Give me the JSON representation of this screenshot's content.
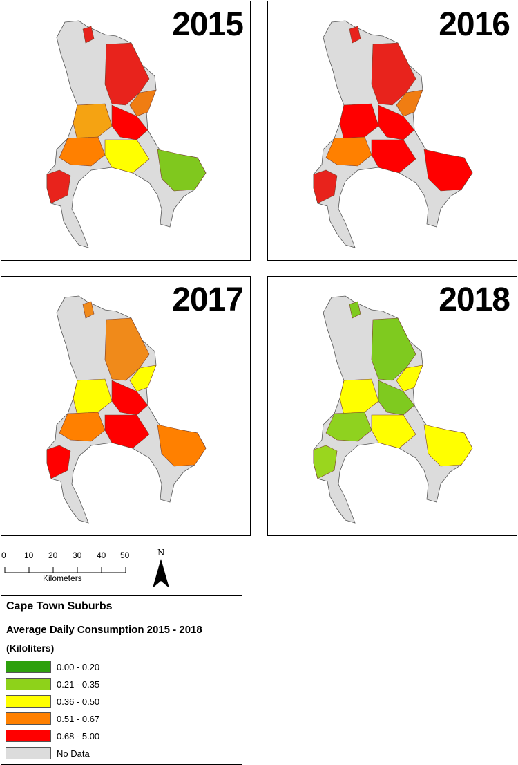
{
  "maps": [
    {
      "year": "2015",
      "palette": [
        "#e8231c",
        "#f07d12",
        "#f5a312",
        "#ff0000",
        "#ff8000",
        "#ffff00",
        "#80c81e",
        "#e8231c"
      ]
    },
    {
      "year": "2016",
      "palette": [
        "#e8231c",
        "#f07d12",
        "#ff0000",
        "#ff0000",
        "#ff8000",
        "#ff0000",
        "#ff0000",
        "#e8231c"
      ]
    },
    {
      "year": "2017",
      "palette": [
        "#f08a1a",
        "#ffff00",
        "#ffff00",
        "#ff0000",
        "#ff8000",
        "#ff0000",
        "#ff8000",
        "#ff0000"
      ]
    },
    {
      "year": "2018",
      "palette": [
        "#7fca1f",
        "#ffff00",
        "#ffff00",
        "#7fca1f",
        "#8fd21f",
        "#ffff00",
        "#ffff00",
        "#9ad61e"
      ]
    }
  ],
  "scale": {
    "ticks": [
      "0",
      "10",
      "20",
      "30",
      "40",
      "50"
    ],
    "unit_label": "Kilometers"
  },
  "north_arrow": {
    "label": "N"
  },
  "legend": {
    "title": "Cape Town Suburbs",
    "subtitle": "Average Daily Consumption 2015 - 2018",
    "units": "(Kiloliters)",
    "classes": [
      {
        "label": "0.00 - 0.20",
        "color": "#2ea00c"
      },
      {
        "label": "0.21 - 0.35",
        "color": "#8ed21a"
      },
      {
        "label": "0.36 - 0.50",
        "color": "#ffff00"
      },
      {
        "label": "0.51 - 0.67",
        "color": "#ff8000"
      },
      {
        "label": "0.68 - 5.00",
        "color": "#ff0000"
      },
      {
        "label": "No Data",
        "color": "#dcdcdc"
      }
    ]
  }
}
